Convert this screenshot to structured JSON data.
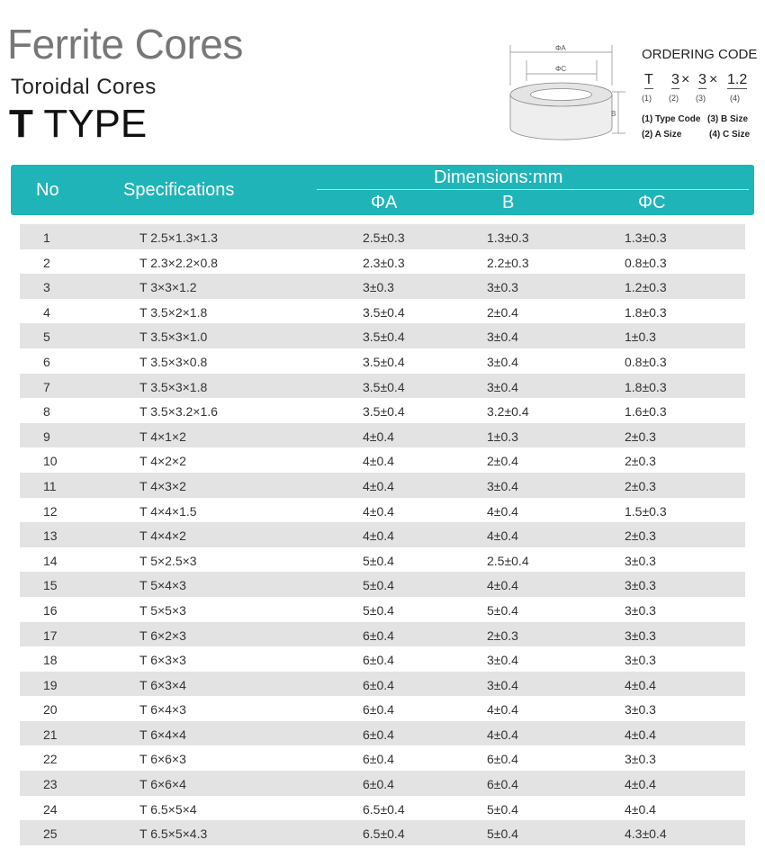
{
  "title": "Ferrite Cores",
  "subtitle": "Toroidal Cores",
  "type_letter": "T",
  "type_word": "TYPE",
  "diagram": {
    "label_a": "ΦA",
    "label_c": "ΦC",
    "label_b": "B"
  },
  "ordering": {
    "title": "ORDERING CODE",
    "parts": [
      "T",
      "3",
      "3",
      "1.2"
    ],
    "sep": "×",
    "nums": [
      "(1)",
      "(2)",
      "(3)",
      "(4)"
    ],
    "legend": [
      "(1) Type Code",
      "(3) B Size",
      "(2) A Size",
      "(4) C Size"
    ]
  },
  "header": {
    "no": "No",
    "spec": "Specifications",
    "dims": "Dimensions:mm",
    "a": "ΦA",
    "b": "B",
    "c": "ΦC"
  },
  "colors": {
    "header": "#1fb5b8",
    "stripe": "#e3e3e3"
  },
  "rows": [
    [
      "1",
      "T  2.5×1.3×1.3",
      "2.5±0.3",
      "1.3±0.3",
      "1.3±0.3"
    ],
    [
      "2",
      "T  2.3×2.2×0.8",
      "2.3±0.3",
      "2.2±0.3",
      "0.8±0.3"
    ],
    [
      "3",
      "T  3×3×1.2",
      "3±0.3",
      "3±0.3",
      "1.2±0.3"
    ],
    [
      "4",
      "T  3.5×2×1.8",
      "3.5±0.4",
      "2±0.4",
      "1.8±0.3"
    ],
    [
      "5",
      "T  3.5×3×1.0",
      "3.5±0.4",
      "3±0.4",
      "1±0.3"
    ],
    [
      "6",
      "T  3.5×3×0.8",
      "3.5±0.4",
      "3±0.4",
      "0.8±0.3"
    ],
    [
      "7",
      "T  3.5×3×1.8",
      "3.5±0.4",
      "3±0.4",
      "1.8±0.3"
    ],
    [
      "8",
      "T  3.5×3.2×1.6",
      "3.5±0.4",
      "3.2±0.4",
      "1.6±0.3"
    ],
    [
      "9",
      "T  4×1×2",
      "4±0.4",
      "1±0.3",
      "2±0.3"
    ],
    [
      "10",
      "T  4×2×2",
      "4±0.4",
      "2±0.4",
      "2±0.3"
    ],
    [
      "11",
      "T  4×3×2",
      "4±0.4",
      "3±0.4",
      "2±0.3"
    ],
    [
      "12",
      "T  4×4×1.5",
      "4±0.4",
      "4±0.4",
      "1.5±0.3"
    ],
    [
      "13",
      "T  4×4×2",
      "4±0.4",
      "4±0.4",
      "2±0.3"
    ],
    [
      "14",
      "T  5×2.5×3",
      "5±0.4",
      "2.5±0.4",
      "3±0.3"
    ],
    [
      "15",
      "T  5×4×3",
      "5±0.4",
      "4±0.4",
      "3±0.3"
    ],
    [
      "16",
      "T  5×5×3",
      "5±0.4",
      "5±0.4",
      "3±0.3"
    ],
    [
      "17",
      "T  6×2×3",
      "6±0.4",
      "2±0.3",
      "3±0.3"
    ],
    [
      "18",
      "T  6×3×3",
      "6±0.4",
      "3±0.4",
      "3±0.3"
    ],
    [
      "19",
      "T  6×3×4",
      "6±0.4",
      "3±0.4",
      "4±0.4"
    ],
    [
      "20",
      "T  6×4×3",
      "6±0.4",
      "4±0.4",
      "3±0.3"
    ],
    [
      "21",
      "T  6×4×4",
      "6±0.4",
      "4±0.4",
      "4±0.4"
    ],
    [
      "22",
      "T  6×6×3",
      "6±0.4",
      "6±0.4",
      "3±0.3"
    ],
    [
      "23",
      "T  6×6×4",
      "6±0.4",
      "6±0.4",
      "4±0.4"
    ],
    [
      "24",
      "T  6.5×5×4",
      "6.5±0.4",
      "5±0.4",
      "4±0.4"
    ],
    [
      "25",
      "T  6.5×5×4.3",
      "6.5±0.4",
      "5±0.4",
      "4.3±0.4"
    ]
  ]
}
